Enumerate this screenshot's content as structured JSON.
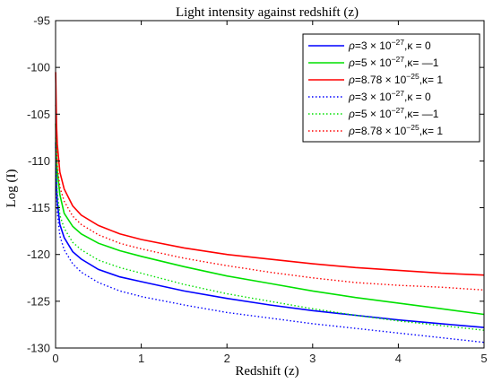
{
  "chart_data": {
    "type": "line",
    "title": "Light intensity against redshift (z)",
    "xlabel": "Redshift (z)",
    "ylabel": "Log (I)",
    "xlim": [
      0,
      5
    ],
    "ylim": [
      -130,
      -95
    ],
    "xticks": [
      0,
      1,
      2,
      3,
      4,
      5
    ],
    "yticks": [
      -95,
      -100,
      -105,
      -110,
      -115,
      -120,
      -125,
      -130
    ],
    "grid": false,
    "legend_position": "top-right",
    "x": [
      0.001,
      0.01,
      0.02,
      0.05,
      0.1,
      0.2,
      0.3,
      0.5,
      0.75,
      1,
      1.5,
      2,
      2.5,
      3,
      3.5,
      4,
      4.5,
      5
    ],
    "series": [
      {
        "name": "ρ=3 × 10−27,κ = 0",
        "label_parts": {
          "prefix": "=3 × 10",
          "exp": "−27",
          "suffix": ",κ = 0"
        },
        "color": "#0000ff",
        "dash": "solid",
        "values": [
          -108.0,
          -112.5,
          -114.3,
          -116.8,
          -118.2,
          -119.7,
          -120.5,
          -121.6,
          -122.4,
          -122.9,
          -123.9,
          -124.7,
          -125.4,
          -126.0,
          -126.5,
          -127.0,
          -127.4,
          -127.8
        ]
      },
      {
        "name": "ρ=5 × 10−27,κ= —1",
        "label_parts": {
          "prefix": "=5 × 10",
          "exp": "−27",
          "suffix": ",κ= —1"
        },
        "color": "#00e000",
        "dash": "solid",
        "values": [
          -106.0,
          -109.5,
          -111.0,
          -113.6,
          -115.6,
          -117.0,
          -117.8,
          -118.8,
          -119.6,
          -120.2,
          -121.3,
          -122.3,
          -123.1,
          -123.9,
          -124.6,
          -125.2,
          -125.8,
          -126.4
        ]
      },
      {
        "name": "ρ=8.78 × 10−25,κ= 1",
        "label_parts": {
          "prefix": "=8.78 × 10",
          "exp": "−25",
          "suffix": ",κ= 1"
        },
        "color": "#ff0000",
        "dash": "solid",
        "values": [
          -100.5,
          -106.0,
          -108.2,
          -111.2,
          -113.0,
          -114.8,
          -115.8,
          -116.9,
          -117.8,
          -118.4,
          -119.3,
          -120.0,
          -120.5,
          -121.0,
          -121.4,
          -121.7,
          -122.0,
          -122.2
        ]
      },
      {
        "name": "ρ=3 × 10−27,κ = 0",
        "label_parts": {
          "prefix": "=3 × 10",
          "exp": "−27",
          "suffix": ",κ = 0"
        },
        "color": "#0000ff",
        "dash": "dotted",
        "values": [
          -108.5,
          -113.3,
          -115.5,
          -118.0,
          -119.5,
          -121.0,
          -121.9,
          -123.0,
          -123.9,
          -124.5,
          -125.4,
          -126.2,
          -126.8,
          -127.4,
          -127.9,
          -128.4,
          -128.9,
          -129.4
        ]
      },
      {
        "name": "ρ=5 × 10−27,κ= —1",
        "label_parts": {
          "prefix": "=5 × 10",
          "exp": "−27",
          "suffix": ",κ= —1"
        },
        "color": "#00e000",
        "dash": "dotted",
        "values": [
          -107.5,
          -111.5,
          -113.3,
          -115.8,
          -117.2,
          -118.7,
          -119.5,
          -120.6,
          -121.4,
          -122.0,
          -123.2,
          -124.2,
          -125.0,
          -125.8,
          -126.5,
          -127.1,
          -127.6,
          -128.1
        ]
      },
      {
        "name": "ρ=8.78 × 10−25,κ= 1",
        "label_parts": {
          "prefix": "=8.78 × 10",
          "exp": "−25",
          "suffix": ",κ= 1"
        },
        "color": "#ff0000",
        "dash": "dotted",
        "values": [
          -104.0,
          -108.5,
          -110.5,
          -112.8,
          -114.3,
          -115.9,
          -116.8,
          -117.9,
          -118.8,
          -119.4,
          -120.4,
          -121.2,
          -121.9,
          -122.5,
          -123.0,
          -123.3,
          -123.5,
          -123.8
        ]
      }
    ]
  }
}
